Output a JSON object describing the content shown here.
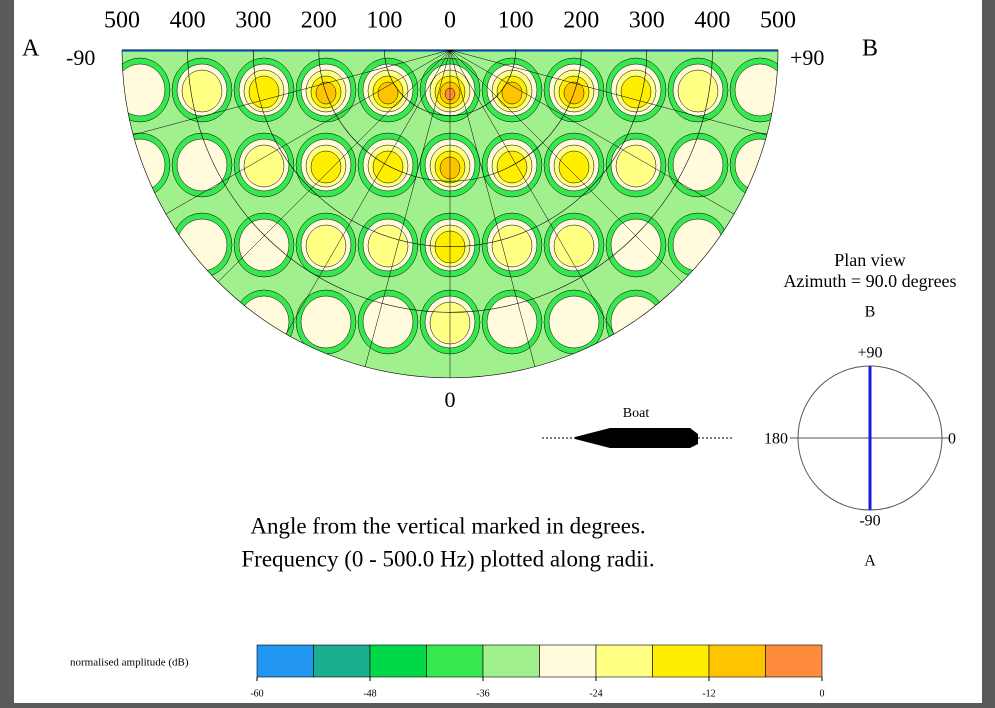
{
  "chart_data": {
    "type": "polar-contour",
    "end_labels": {
      "left": "A",
      "right": "B"
    },
    "angle_labels": {
      "left": "-90",
      "right": "+90",
      "bottom": "0"
    },
    "frequency_ticks": [
      500,
      400,
      300,
      200,
      100,
      0,
      100,
      200,
      300,
      400,
      500
    ],
    "boat_label": "Boat",
    "plan_view": {
      "title": "Plan view",
      "azimuth": "Azimuth =  90.0 degrees",
      "top_end": "B",
      "bottom_end": "A",
      "top": "+90",
      "bottom": "-90",
      "left": "180",
      "right": "0"
    },
    "caption": [
      "Angle from the vertical marked in degrees.",
      "Frequency (0 - 500.0 Hz) plotted along radii."
    ],
    "colorbar": {
      "label": "normalised amplitude (dB)",
      "range": [
        -60,
        0
      ],
      "ticks": [
        -60,
        -48,
        -36,
        -24,
        -12,
        0
      ],
      "colors": [
        "#2196f0",
        "#1aae8e",
        "#00d84a",
        "#34e84e",
        "#a0f08e",
        "#fffbdc",
        "#ffff84",
        "#ffee00",
        "#ffc400",
        "#ff8c3c"
      ]
    }
  }
}
